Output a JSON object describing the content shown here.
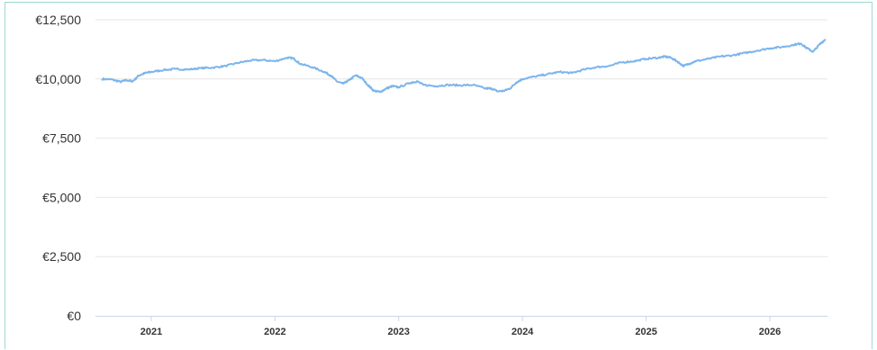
{
  "chart_data": {
    "type": "line",
    "title": "",
    "xlabel": "",
    "ylabel": "",
    "ylim": [
      0,
      12500
    ],
    "xlim": [
      2020.6,
      2026.45
    ],
    "grid": true,
    "y_ticks": [
      {
        "value": 0,
        "label": "€0"
      },
      {
        "value": 2500,
        "label": "€2,500"
      },
      {
        "value": 5000,
        "label": "€5,000"
      },
      {
        "value": 7500,
        "label": "€7,500"
      },
      {
        "value": 10000,
        "label": "€10,000"
      },
      {
        "value": 12500,
        "label": "€12,500"
      }
    ],
    "x_ticks": [
      {
        "value": 2021,
        "label": "2021"
      },
      {
        "value": 2022,
        "label": "2022"
      },
      {
        "value": 2023,
        "label": "2023"
      },
      {
        "value": 2024,
        "label": "2024"
      },
      {
        "value": 2025,
        "label": "2025"
      },
      {
        "value": 2026,
        "label": "2026"
      }
    ],
    "series": [
      {
        "color": "#7cb5ec",
        "points": [
          [
            2020.6,
            10000
          ],
          [
            2020.68,
            9980
          ],
          [
            2020.75,
            9880
          ],
          [
            2020.8,
            9950
          ],
          [
            2020.85,
            9900
          ],
          [
            2020.9,
            10150
          ],
          [
            2020.95,
            10250
          ],
          [
            2021.0,
            10300
          ],
          [
            2021.1,
            10380
          ],
          [
            2021.2,
            10420
          ],
          [
            2021.3,
            10400
          ],
          [
            2021.4,
            10460
          ],
          [
            2021.5,
            10480
          ],
          [
            2021.6,
            10550
          ],
          [
            2021.7,
            10680
          ],
          [
            2021.8,
            10780
          ],
          [
            2021.9,
            10800
          ],
          [
            2022.0,
            10750
          ],
          [
            2022.1,
            10900
          ],
          [
            2022.15,
            10870
          ],
          [
            2022.2,
            10650
          ],
          [
            2022.3,
            10500
          ],
          [
            2022.4,
            10300
          ],
          [
            2022.45,
            10150
          ],
          [
            2022.5,
            9900
          ],
          [
            2022.55,
            9800
          ],
          [
            2022.6,
            9950
          ],
          [
            2022.65,
            10150
          ],
          [
            2022.7,
            10050
          ],
          [
            2022.75,
            9750
          ],
          [
            2022.8,
            9500
          ],
          [
            2022.85,
            9450
          ],
          [
            2022.9,
            9600
          ],
          [
            2022.95,
            9700
          ],
          [
            2023.0,
            9650
          ],
          [
            2023.1,
            9850
          ],
          [
            2023.15,
            9900
          ],
          [
            2023.2,
            9750
          ],
          [
            2023.3,
            9700
          ],
          [
            2023.4,
            9750
          ],
          [
            2023.5,
            9730
          ],
          [
            2023.6,
            9750
          ],
          [
            2023.7,
            9600
          ],
          [
            2023.75,
            9600
          ],
          [
            2023.8,
            9480
          ],
          [
            2023.85,
            9500
          ],
          [
            2023.9,
            9600
          ],
          [
            2023.95,
            9850
          ],
          [
            2024.0,
            10000
          ],
          [
            2024.1,
            10100
          ],
          [
            2024.2,
            10200
          ],
          [
            2024.3,
            10300
          ],
          [
            2024.4,
            10250
          ],
          [
            2024.5,
            10400
          ],
          [
            2024.6,
            10500
          ],
          [
            2024.7,
            10550
          ],
          [
            2024.8,
            10700
          ],
          [
            2024.9,
            10750
          ],
          [
            2025.0,
            10850
          ],
          [
            2025.1,
            10900
          ],
          [
            2025.15,
            10950
          ],
          [
            2025.2,
            10900
          ],
          [
            2025.25,
            10750
          ],
          [
            2025.3,
            10550
          ],
          [
            2025.35,
            10650
          ],
          [
            2025.4,
            10750
          ],
          [
            2025.5,
            10850
          ],
          [
            2025.6,
            10950
          ],
          [
            2025.7,
            11000
          ],
          [
            2025.8,
            11100
          ],
          [
            2025.9,
            11200
          ],
          [
            2026.0,
            11300
          ],
          [
            2026.1,
            11350
          ],
          [
            2026.2,
            11450
          ],
          [
            2026.25,
            11500
          ],
          [
            2026.3,
            11300
          ],
          [
            2026.35,
            11150
          ],
          [
            2026.4,
            11450
          ],
          [
            2026.45,
            11680
          ]
        ]
      }
    ]
  }
}
